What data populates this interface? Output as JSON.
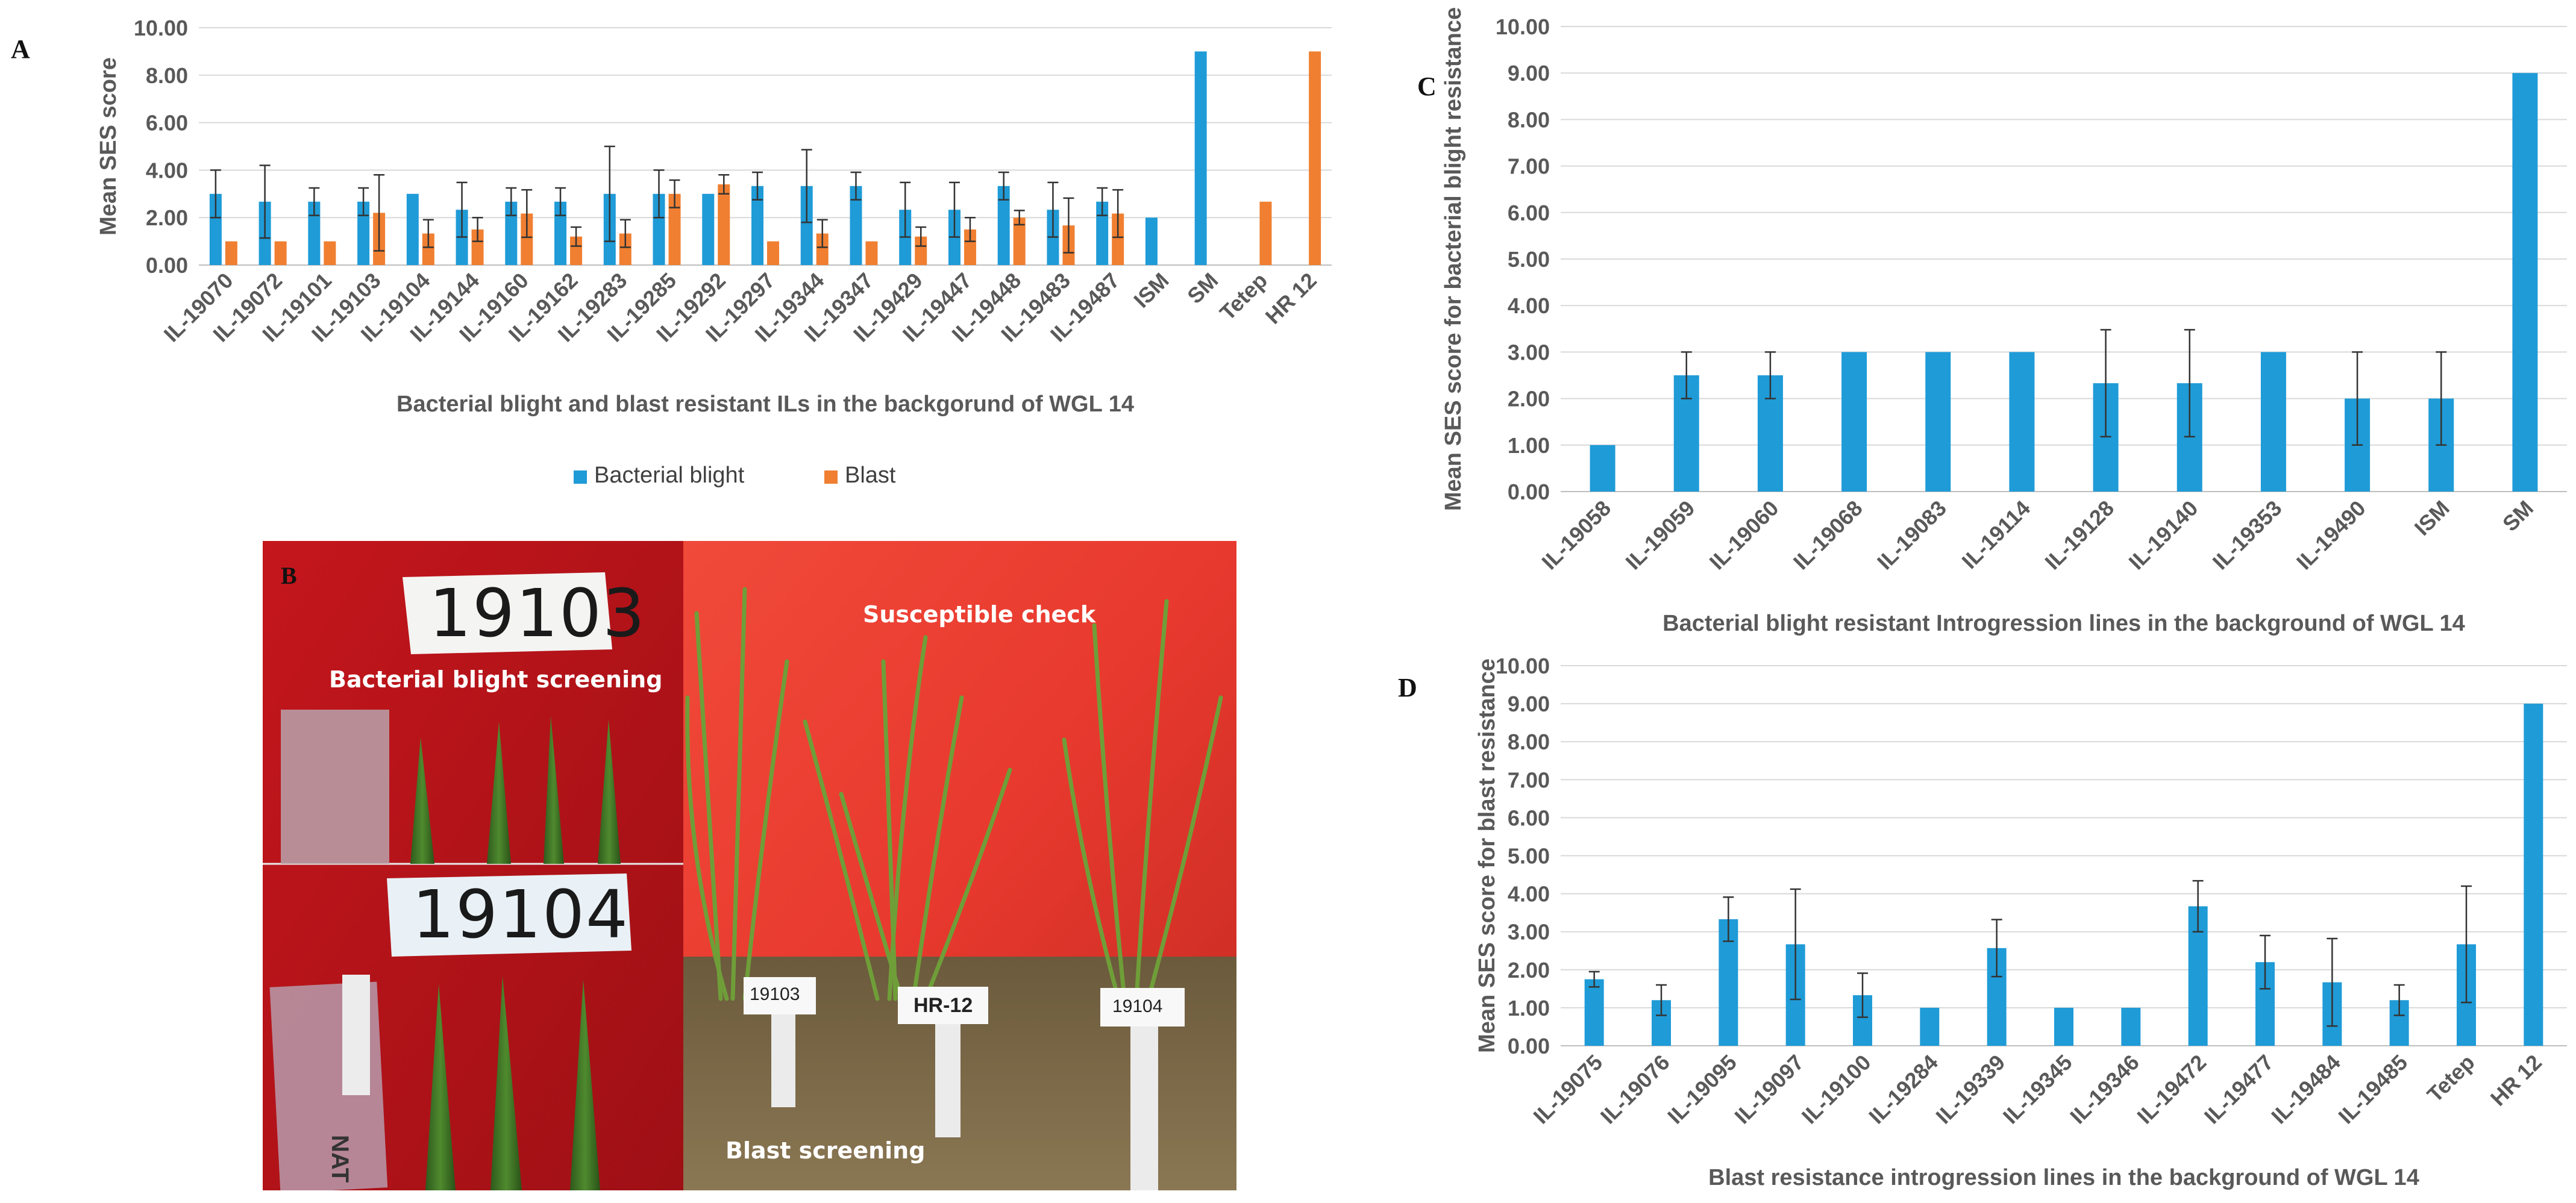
{
  "panel_labels": {
    "a": "A",
    "b": "B",
    "c": "C",
    "d": "D"
  },
  "colors": {
    "bacterial_blight": "#1f9bd7",
    "blast": "#f07f31",
    "grid": "#d9d9d9",
    "axis_text": "#595959"
  },
  "chart_data": [
    {
      "id": "A",
      "type": "bar",
      "title": "",
      "xlabel": "Bacterial blight and blast resistant ILs in the backgorund of WGL 14",
      "ylabel": "Mean SES score",
      "ylim": [
        0,
        10
      ],
      "yticks": [
        "0.00",
        "2.00",
        "4.00",
        "6.00",
        "8.00",
        "10.00"
      ],
      "legend_position": "bottom",
      "grid": true,
      "categories": [
        "IL-19070",
        "IL-19072",
        "IL-19101",
        "IL-19103",
        "IL-19104",
        "IL-19144",
        "IL-19160",
        "IL-19162",
        "IL-19283",
        "IL-19285",
        "IL-19292",
        "IL-19297",
        "IL-19344",
        "IL-19347",
        "IL-19429",
        "IL-19447",
        "IL-19448",
        "IL-19483",
        "IL-19487",
        "ISM",
        "SM",
        "Tetep",
        "HR 12"
      ],
      "series": [
        {
          "name": "Bacterial blight",
          "values": [
            3.0,
            2.67,
            2.67,
            2.67,
            3.0,
            2.33,
            2.67,
            2.67,
            3.0,
            3.0,
            3.0,
            3.33,
            3.33,
            3.33,
            2.33,
            2.33,
            3.33,
            2.33,
            2.67,
            2.0,
            9.0,
            null,
            null
          ],
          "errors": [
            1.0,
            1.53,
            0.58,
            0.58,
            0.0,
            1.15,
            0.58,
            0.58,
            2.0,
            1.0,
            0.0,
            0.58,
            1.53,
            0.58,
            1.15,
            1.15,
            0.58,
            1.15,
            0.58,
            0.0,
            0.0,
            null,
            null
          ]
        },
        {
          "name": "Blast",
          "values": [
            1.0,
            1.0,
            1.0,
            2.2,
            1.33,
            1.5,
            2.17,
            1.2,
            1.33,
            3.0,
            3.4,
            1.0,
            1.33,
            1.0,
            1.2,
            1.5,
            2.0,
            1.67,
            2.17,
            null,
            null,
            2.67,
            9.0
          ],
          "errors": [
            0.0,
            0.0,
            0.0,
            1.6,
            0.58,
            0.5,
            1.0,
            0.4,
            0.58,
            0.58,
            0.4,
            0.0,
            0.58,
            0.0,
            0.4,
            0.5,
            0.3,
            1.15,
            1.0,
            null,
            null,
            0.0,
            0.0
          ]
        }
      ]
    },
    {
      "id": "C",
      "type": "bar",
      "title": "",
      "xlabel": "Bacterial blight resistant Introgression lines in the background of WGL 14",
      "ylabel": "Mean SES score for bacterial blight resistance",
      "ylim": [
        0,
        10
      ],
      "yticks": [
        "0.00",
        "1.00",
        "2.00",
        "3.00",
        "4.00",
        "5.00",
        "6.00",
        "7.00",
        "8.00",
        "9.00",
        "10.00"
      ],
      "grid": true,
      "categories": [
        "IL-19058",
        "IL-19059",
        "IL-19060",
        "IL-19068",
        "IL-19083",
        "IL-19114",
        "IL-19128",
        "IL-19140",
        "IL-19353",
        "IL-19490",
        "ISM",
        "SM"
      ],
      "series": [
        {
          "values": [
            1.0,
            2.5,
            2.5,
            3.0,
            3.0,
            3.0,
            2.33,
            2.33,
            3.0,
            2.0,
            2.0,
            9.0
          ],
          "errors": [
            0.0,
            0.5,
            0.5,
            0.0,
            0.0,
            0.0,
            1.15,
            1.15,
            0.0,
            1.0,
            1.0,
            0.0
          ]
        }
      ]
    },
    {
      "id": "D",
      "type": "bar",
      "title": "",
      "xlabel": "Blast resistance introgression lines in the background of WGL 14",
      "ylabel": "Mean SES score for blast resistance",
      "ylim": [
        0,
        10
      ],
      "yticks": [
        "0.00",
        "1.00",
        "2.00",
        "3.00",
        "4.00",
        "5.00",
        "6.00",
        "7.00",
        "8.00",
        "9.00",
        "10.00"
      ],
      "grid": true,
      "categories": [
        "IL-19075",
        "IL-19076",
        "IL-19095",
        "IL-19097",
        "IL-19100",
        "IL-19284",
        "IL-19339",
        "IL-19345",
        "IL-19346",
        "IL-19472",
        "IL-19477",
        "IL-19484",
        "IL-19485",
        "Tetep",
        "HR 12"
      ],
      "series": [
        {
          "values": [
            1.75,
            1.2,
            3.33,
            2.67,
            1.33,
            1.0,
            2.57,
            1.0,
            1.0,
            3.67,
            2.2,
            1.67,
            1.2,
            2.67,
            9.0
          ],
          "errors": [
            0.2,
            0.4,
            0.58,
            1.45,
            0.58,
            0.0,
            0.75,
            0.0,
            0.0,
            0.67,
            0.7,
            1.15,
            0.4,
            1.53,
            0.0
          ]
        }
      ]
    }
  ],
  "photo": {
    "bb_tag_top": "19103",
    "bb_tag_bottom": "19104",
    "bb_caption": "Bacterial blight screening",
    "susceptible_caption": "Susceptible check",
    "blast_caption": "Blast screening",
    "stake_left": "19103",
    "stake_mid": "HR-12",
    "stake_right": "19104",
    "ruler_text": "NAT"
  }
}
